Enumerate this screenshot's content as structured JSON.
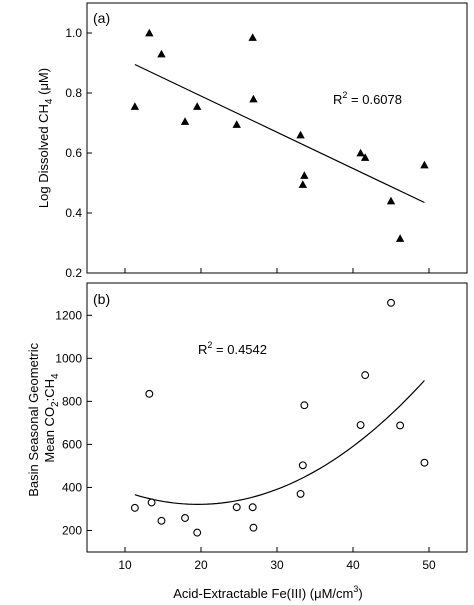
{
  "chart_data": [
    {
      "type": "scatter",
      "panel_label": "(a)",
      "ylabel": "Log Dissolved CH",
      "ylabel_sub": "4",
      "ylabel_tail": " (μM)",
      "xlim": [
        5,
        55
      ],
      "ylim": [
        0.2,
        1.1
      ],
      "yticks": [
        0.2,
        0.4,
        0.6,
        0.8,
        1.0
      ],
      "ytick_labels": [
        "0.2",
        "0.4",
        "0.6",
        "0.8",
        "1.0"
      ],
      "marker": "filled-triangle",
      "points": [
        {
          "x": 11.3,
          "y": 0.755
        },
        {
          "x": 13.2,
          "y": 1.0
        },
        {
          "x": 14.8,
          "y": 0.93
        },
        {
          "x": 17.9,
          "y": 0.705
        },
        {
          "x": 19.5,
          "y": 0.755
        },
        {
          "x": 24.7,
          "y": 0.695
        },
        {
          "x": 26.8,
          "y": 0.985
        },
        {
          "x": 26.9,
          "y": 0.78
        },
        {
          "x": 33.1,
          "y": 0.66
        },
        {
          "x": 33.4,
          "y": 0.495
        },
        {
          "x": 33.6,
          "y": 0.525
        },
        {
          "x": 41.0,
          "y": 0.6
        },
        {
          "x": 41.6,
          "y": 0.585
        },
        {
          "x": 45.0,
          "y": 0.44
        },
        {
          "x": 46.2,
          "y": 0.315
        },
        {
          "x": 49.4,
          "y": 0.56
        }
      ],
      "fit": {
        "kind": "linear",
        "x_start": 11.3,
        "x_end": 49.4,
        "y_start": 0.895,
        "y_end": 0.435
      },
      "annotation": {
        "text_prefix": "R",
        "text_sup": "2",
        "text_suffix": " = 0.6078"
      }
    },
    {
      "type": "scatter",
      "panel_label": "(b)",
      "ylabel_line1": "Basin Seasonal Geometric",
      "ylabel_line2_pre": "Mean CO",
      "ylabel_line2_sub1": "2",
      "ylabel_line2_mid": ":CH",
      "ylabel_line2_sub2": "4",
      "xlabel_pre": "Acid-Extractable Fe(III) (μM/cm",
      "xlabel_sup": "3",
      "xlabel_post": ")",
      "xlim": [
        5,
        55
      ],
      "ylim": [
        100,
        1350
      ],
      "xticks": [
        10,
        20,
        30,
        40,
        50
      ],
      "xtick_labels": [
        "10",
        "20",
        "30",
        "40",
        "50"
      ],
      "yticks": [
        200,
        400,
        600,
        800,
        1000,
        1200
      ],
      "ytick_labels": [
        "200",
        "400",
        "600",
        "800",
        "1000",
        "1200"
      ],
      "marker": "open-circle",
      "points": [
        {
          "x": 11.3,
          "y": 305
        },
        {
          "x": 13.2,
          "y": 835
        },
        {
          "x": 13.5,
          "y": 330
        },
        {
          "x": 14.8,
          "y": 245
        },
        {
          "x": 17.9,
          "y": 258
        },
        {
          "x": 19.5,
          "y": 190
        },
        {
          "x": 24.7,
          "y": 308
        },
        {
          "x": 26.8,
          "y": 308
        },
        {
          "x": 26.9,
          "y": 213
        },
        {
          "x": 33.1,
          "y": 370
        },
        {
          "x": 33.4,
          "y": 503
        },
        {
          "x": 33.6,
          "y": 782
        },
        {
          "x": 41.0,
          "y": 690
        },
        {
          "x": 41.6,
          "y": 922
        },
        {
          "x": 45.0,
          "y": 1258
        },
        {
          "x": 46.2,
          "y": 688
        },
        {
          "x": 49.4,
          "y": 515
        }
      ],
      "fit": {
        "kind": "quadratic",
        "x_start": 11.3,
        "x_end": 49.4,
        "coef": [
          570.8,
          -25.44,
          0.6486
        ]
      },
      "annotation": {
        "text_prefix": "R",
        "text_sup": "2",
        "text_suffix": " = 0.4542"
      }
    }
  ]
}
